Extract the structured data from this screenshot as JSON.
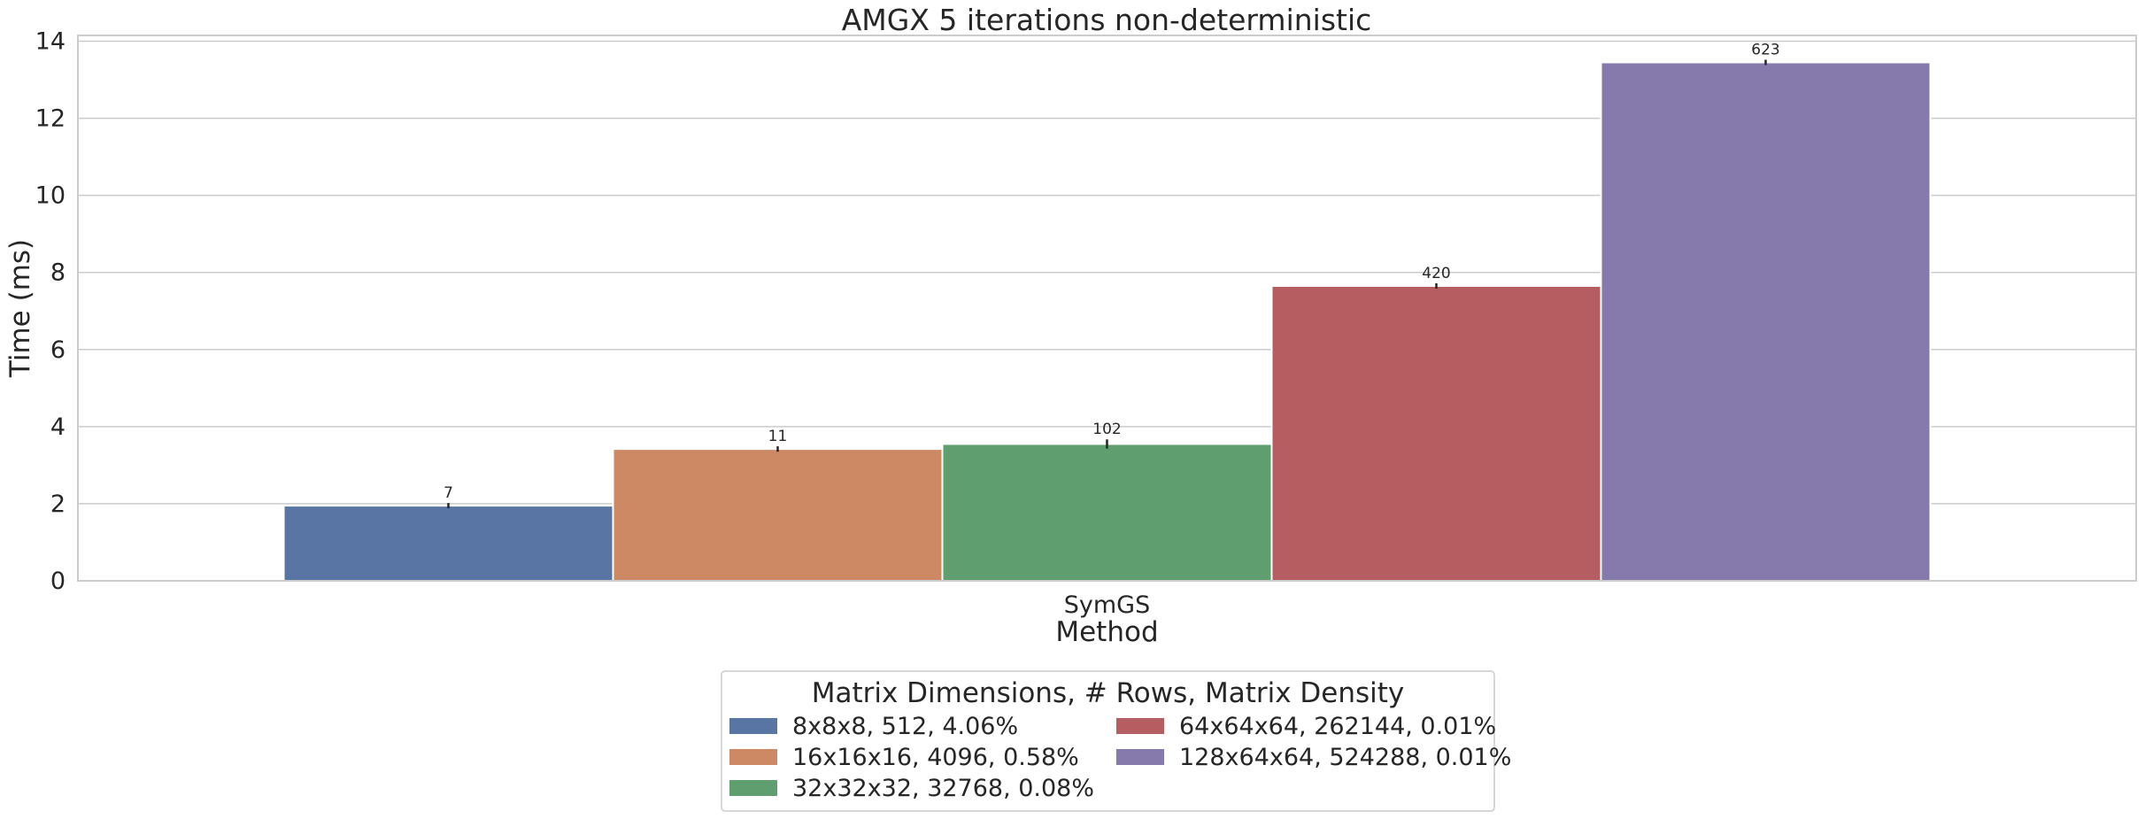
{
  "chart_data": {
    "type": "bar",
    "title": "AMGX 5 iterations non-deterministic",
    "xlabel": "Method",
    "ylabel": "Time (ms)",
    "categories": [
      "SymGS"
    ],
    "ylim": [
      0,
      14.15
    ],
    "yticks": [
      0,
      2,
      4,
      6,
      8,
      10,
      12,
      14
    ],
    "grid": true,
    "legend": {
      "title": "Matrix Dimensions, # Rows, Matrix Density",
      "placement": "bottom-center"
    },
    "series": [
      {
        "name": "8x8x8, 512, 4.06%",
        "values": [
          1.95
        ],
        "error": [
          0.02
        ],
        "label": "7",
        "color": "#5975a4"
      },
      {
        "name": "16x16x16, 4096, 0.58%",
        "values": [
          3.42
        ],
        "error": [
          0.07
        ],
        "label": "11",
        "color": "#cc8963"
      },
      {
        "name": "32x32x32, 32768, 0.08%",
        "values": [
          3.55
        ],
        "error": [
          0.12
        ],
        "label": "102",
        "color": "#5f9e6e"
      },
      {
        "name": "64x64x64, 262144, 0.01%",
        "values": [
          7.65
        ],
        "error": [
          0.06
        ],
        "label": "420",
        "color": "#b55d60"
      },
      {
        "name": "128x64x64, 524288, 0.01%",
        "values": [
          13.45
        ],
        "error": [
          0.04
        ],
        "label": "623",
        "color": "#857aab"
      }
    ]
  }
}
